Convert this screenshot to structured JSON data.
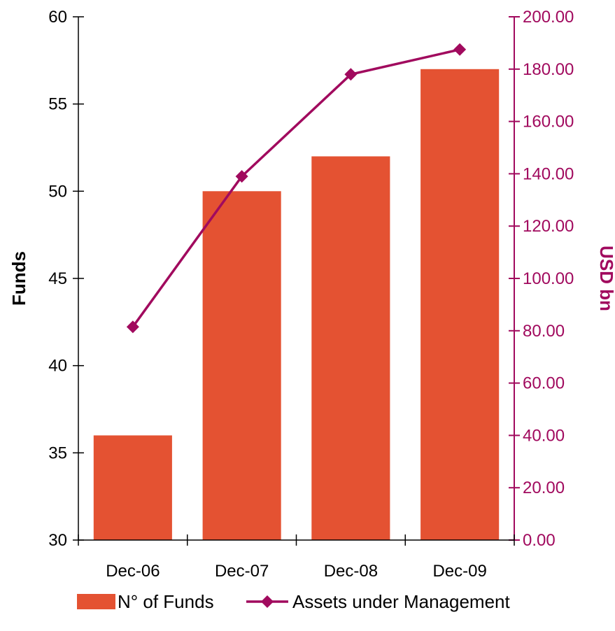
{
  "chart_data": {
    "type": "bar",
    "categories": [
      "Dec-06",
      "Dec-07",
      "Dec-08",
      "Dec-09"
    ],
    "series": [
      {
        "name": "N° of Funds",
        "type": "bar",
        "axis": "left",
        "values": [
          36,
          50,
          52,
          57
        ],
        "color": "#E45232"
      },
      {
        "name": "Assets under Management",
        "type": "line",
        "axis": "right",
        "marker": "diamond",
        "values": [
          81.5,
          139,
          178,
          187.5
        ],
        "color": "#A10A5E"
      }
    ],
    "y_left": {
      "label": "Funds",
      "ylim": [
        30,
        60
      ],
      "ticks": [
        30,
        35,
        40,
        45,
        50,
        55,
        60
      ],
      "tick_labels": [
        "30",
        "35",
        "40",
        "45",
        "50",
        "55",
        "60"
      ],
      "color": "#000000"
    },
    "y_right": {
      "label": "USD bn",
      "ylim": [
        0,
        200
      ],
      "ticks": [
        0,
        20,
        40,
        60,
        80,
        100,
        120,
        140,
        160,
        180,
        200
      ],
      "tick_labels": [
        "0.00",
        "20.00",
        "40.00",
        "60.00",
        "80.00",
        "100.00",
        "120.00",
        "140.00",
        "160.00",
        "180.00",
        "200.00"
      ],
      "color": "#A10A5E"
    },
    "grid": false,
    "legend": {
      "position": "bottom",
      "entries": [
        "N° of Funds",
        "Assets under Management"
      ]
    }
  }
}
